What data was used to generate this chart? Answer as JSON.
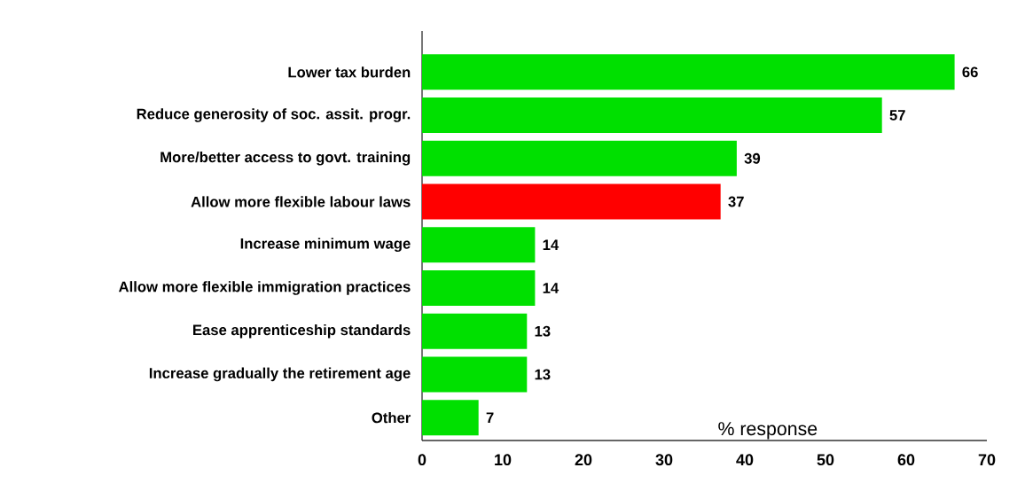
{
  "chart_data": {
    "type": "bar",
    "orientation": "horizontal",
    "xlabel": "% response",
    "categories": [
      "Lower tax burden",
      "Reduce generosity of soc. assit. progr.",
      "More/better access to govt. training",
      "Allow more flexible labour laws",
      "Increase minimum wage",
      "Allow more flexible immigration practices",
      "Ease apprenticeship standards",
      "Increase gradually the retirement age",
      "Other"
    ],
    "values": [
      66,
      57,
      39,
      37,
      14,
      14,
      13,
      13,
      7
    ],
    "colors": [
      "#00e000",
      "#00e000",
      "#00e000",
      "#ff0000",
      "#00e000",
      "#00e000",
      "#00e000",
      "#00e000",
      "#00e000"
    ],
    "xlim": [
      0,
      70
    ],
    "xticks": [
      0,
      10,
      20,
      30,
      40,
      50,
      60,
      70
    ],
    "data_labels": true,
    "grid": false
  }
}
